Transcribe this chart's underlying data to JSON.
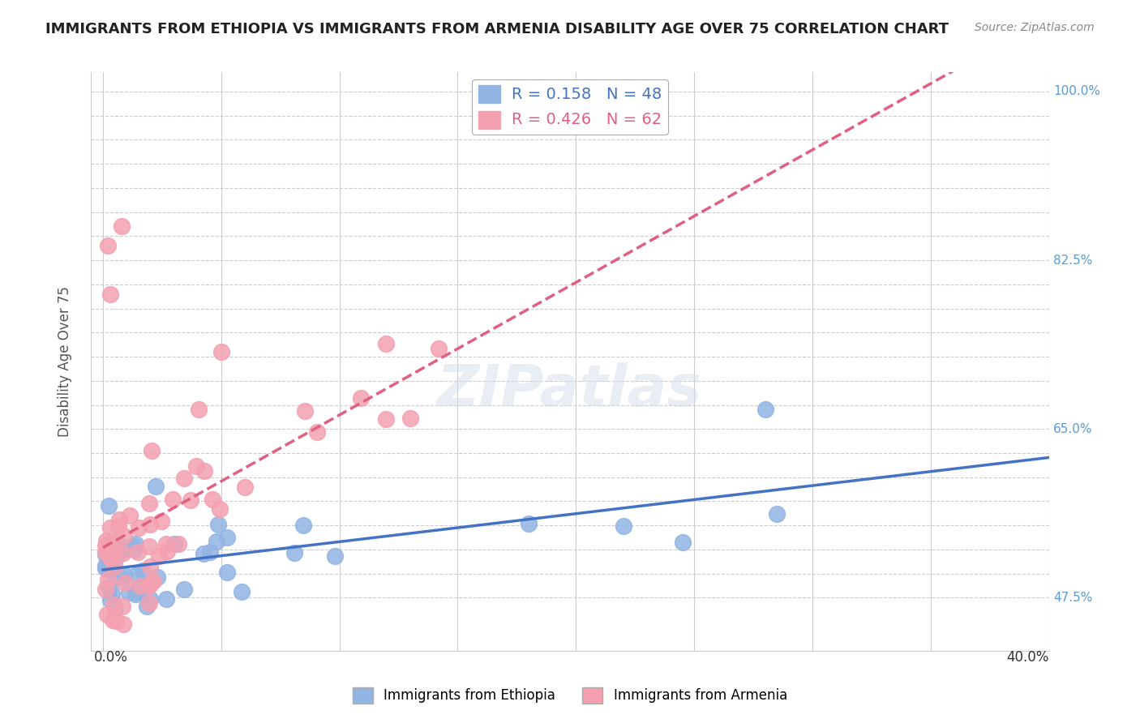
{
  "title": "IMMIGRANTS FROM ETHIOPIA VS IMMIGRANTS FROM ARMENIA DISABILITY AGE OVER 75 CORRELATION CHART",
  "source_text": "Source: ZipAtlas.com",
  "ylabel": "Disability Age Over 75",
  "x_min": -0.005,
  "x_max": 0.4,
  "y_min": 0.42,
  "y_max": 1.02,
  "ethiopia_color": "#92b4e3",
  "armenia_color": "#f4a0b0",
  "ethiopia_R": 0.158,
  "ethiopia_N": 48,
  "armenia_R": 0.426,
  "armenia_N": 62,
  "ethiopia_line_color": "#4472c4",
  "armenia_line_color": "#e06080",
  "watermark": "ZIPatlas",
  "background_color": "#ffffff",
  "right_labels": {
    "1.00": "100.0%",
    "0.825": "82.5%",
    "0.65": "65.0%",
    "0.475": "47.5%"
  },
  "right_label_color": "#5b9bd5",
  "x_left_label": "0.0%",
  "x_right_label": "40.0%"
}
